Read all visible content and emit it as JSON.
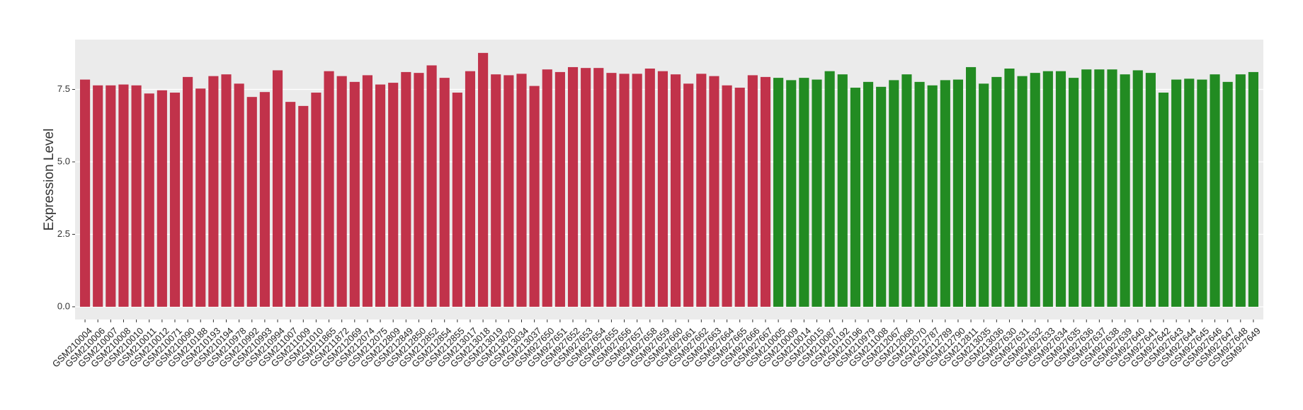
{
  "chart_data": {
    "type": "bar",
    "y_label": "Expression Level",
    "ylim": [
      -0.44,
      9.22
    ],
    "yticks": [
      {
        "value": 0,
        "label": "0.0"
      },
      {
        "value": 2.5,
        "label": "2.5"
      },
      {
        "value": 5,
        "label": "5.0"
      },
      {
        "value": 7.5,
        "label": "7.5"
      }
    ],
    "grid": true,
    "series": [
      {
        "color": "#c1324a",
        "categories": [
          "GSM210004",
          "GSM210006",
          "GSM210007",
          "GSM210008",
          "GSM210010",
          "GSM210011",
          "GSM210012",
          "GSM210071",
          "GSM210090",
          "GSM210188",
          "GSM210193",
          "GSM210194",
          "GSM210978",
          "GSM210992",
          "GSM210993",
          "GSM210994",
          "GSM211007",
          "GSM211009",
          "GSM211010",
          "GSM211865",
          "GSM211872",
          "GSM212069",
          "GSM212074",
          "GSM212075",
          "GSM212809",
          "GSM212849",
          "GSM212850",
          "GSM212852",
          "GSM212854",
          "GSM212855",
          "GSM213017",
          "GSM213018",
          "GSM213019",
          "GSM213020",
          "GSM213034",
          "GSM213037",
          "GSM927650",
          "GSM927651",
          "GSM927652",
          "GSM927653",
          "GSM927654",
          "GSM927655",
          "GSM927656",
          "GSM927657",
          "GSM927658",
          "GSM927659",
          "GSM927660",
          "GSM927661",
          "GSM927662",
          "GSM927663",
          "GSM927664",
          "GSM927665",
          "GSM927666",
          "GSM927667"
        ],
        "values": [
          7.84,
          7.64,
          7.64,
          7.67,
          7.64,
          7.36,
          7.47,
          7.39,
          7.93,
          7.53,
          7.96,
          8.02,
          7.7,
          7.24,
          7.41,
          8.16,
          7.07,
          6.93,
          7.39,
          8.13,
          7.96,
          7.76,
          7.99,
          7.67,
          7.73,
          8.1,
          8.07,
          8.33,
          7.9,
          7.39,
          8.13,
          8.76,
          8.02,
          7.99,
          8.04,
          7.62,
          8.19,
          8.1,
          8.27,
          8.24,
          8.24,
          8.07,
          8.04,
          8.04,
          8.22,
          8.13,
          8.02,
          7.7,
          8.04,
          7.96,
          7.64,
          7.56,
          7.99,
          7.93
        ]
      },
      {
        "color": "#228b22",
        "categories": [
          "GSM210005",
          "GSM210009",
          "GSM210014",
          "GSM210015",
          "GSM210087",
          "GSM210192",
          "GSM210196",
          "GSM210979",
          "GSM211008",
          "GSM212067",
          "GSM212068",
          "GSM212070",
          "GSM212787",
          "GSM212789",
          "GSM212790",
          "GSM212811",
          "GSM213035",
          "GSM213036",
          "GSM927630",
          "GSM927631",
          "GSM927632",
          "GSM927633",
          "GSM927634",
          "GSM927635",
          "GSM927636",
          "GSM927637",
          "GSM927638",
          "GSM927639",
          "GSM927640",
          "GSM927641",
          "GSM927642",
          "GSM927643",
          "GSM927644",
          "GSM927645",
          "GSM927646",
          "GSM927647",
          "GSM927648",
          "GSM927649"
        ],
        "values": [
          7.9,
          7.82,
          7.9,
          7.84,
          8.13,
          8.02,
          7.56,
          7.76,
          7.59,
          7.82,
          8.02,
          7.76,
          7.64,
          7.82,
          7.84,
          8.27,
          7.7,
          7.93,
          8.22,
          7.96,
          8.07,
          8.13,
          8.13,
          7.9,
          8.19,
          8.19,
          8.19,
          8.02,
          8.16,
          8.07,
          7.39,
          7.84,
          7.87,
          7.84,
          8.02,
          7.76,
          8.02,
          8.1
        ]
      }
    ]
  }
}
